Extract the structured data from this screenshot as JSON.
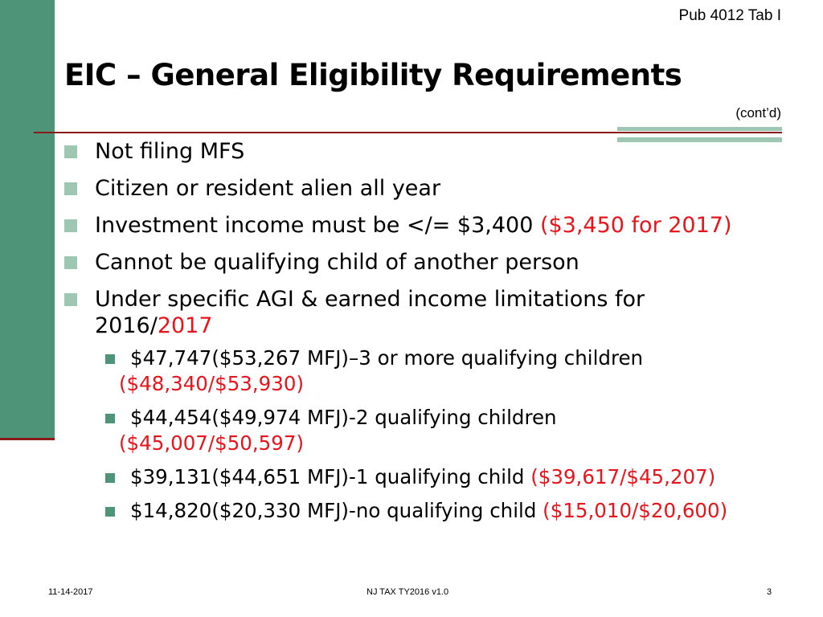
{
  "header": {
    "pub_label": "Pub 4012 Tab I",
    "title": "EIC – General Eligibility Requirements",
    "subtitle": "(cont’d)"
  },
  "bullets": [
    {
      "text": "Not filing MFS",
      "red": ""
    },
    {
      "text": "Citizen or resident alien all year",
      "red": ""
    },
    {
      "text": "Investment income must be </= $3,400 ",
      "red": "($3,450 for 2017)"
    },
    {
      "text": "Cannot be qualifying child of another person",
      "red": ""
    },
    {
      "text": "Under specific AGI & earned income limitations for 2016/",
      "red": "2017"
    }
  ],
  "sub_bullets": [
    {
      "text": "$47,747($53,267 MFJ)–3 or more qualifying children",
      "red": "($48,340/$53,930)"
    },
    {
      "text": " $44,454($49,974 MFJ)-2 qualifying children",
      "red": "($45,007/$50,597)"
    },
    {
      "text": " $39,131($44,651 MFJ)-1 qualifying child ",
      "red": "($39,617/$45,207)"
    },
    {
      "text": " $14,820($20,330 MFJ)-no qualifying child ",
      "red": "($15,010/$20,600)"
    }
  ],
  "footer": {
    "date": "11-14-2017",
    "center": "NJ TAX TY2016 v1.0",
    "page_number": "3"
  },
  "colors": {
    "sidebar_green": "#4e9479",
    "accent_light_green": "#9ec7b3",
    "rule_red": "#8b1a1a",
    "highlight_red": "#e8141b"
  }
}
